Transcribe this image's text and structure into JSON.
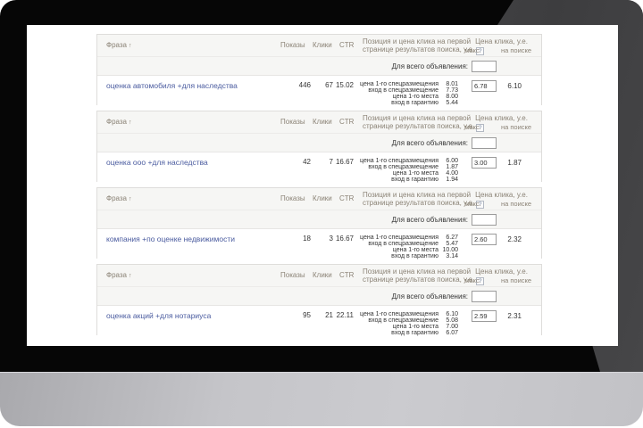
{
  "columns": {
    "phrase": "Фраза",
    "sort_arrow": "↑",
    "impressions": "Показы",
    "clicks": "Клики",
    "ctr": "CTR",
    "position_line1": "Позиция и цена клика на первой",
    "position_line2": "странице результатов поиска, у.е.",
    "help_icon": "?",
    "click_price": "Цена клика, у.е.",
    "max": "макс.",
    "on_search": "на поиске"
  },
  "for_all_label": "Для всего объявления:",
  "breakdown_labels": [
    "цена 1-го спецразмещения",
    "вход в спецразмещение",
    "цена 1-го места",
    "вход в гарантию"
  ],
  "groups": [
    {
      "phrase": "оценка автомобиля +для наследства",
      "impressions": "446",
      "clicks": "67",
      "ctr": "15.02",
      "breakdown": [
        "8.01",
        "7.73",
        "8.00",
        "5.44"
      ],
      "max_bid": "6.78",
      "search_price": "6.10"
    },
    {
      "phrase": "оценка ооо +для наследства",
      "impressions": "42",
      "clicks": "7",
      "ctr": "16.67",
      "breakdown": [
        "6.00",
        "1.87",
        "4.00",
        "1.94"
      ],
      "max_bid": "3.00",
      "search_price": "1.87"
    },
    {
      "phrase": "компания +по оценке недвижимости",
      "impressions": "18",
      "clicks": "3",
      "ctr": "16.67",
      "breakdown": [
        "6.27",
        "5.47",
        "10.00",
        "3.14"
      ],
      "max_bid": "2.60",
      "search_price": "2.32"
    },
    {
      "phrase": "оценка акций +для нотариуса",
      "impressions": "95",
      "clicks": "21",
      "ctr": "22.11",
      "breakdown": [
        "6.10",
        "5.08",
        "7.00",
        "6.07"
      ],
      "max_bid": "2.59",
      "search_price": "2.31"
    }
  ],
  "colors": {
    "link": "#4a5b9f",
    "header_bg": "#f6f6f4",
    "header_text": "#8b8376",
    "block_border": "#dedddb",
    "bezel": "#060606",
    "bezel_highlight": "#4a4a4c",
    "stand": "#c2c2c6"
  }
}
